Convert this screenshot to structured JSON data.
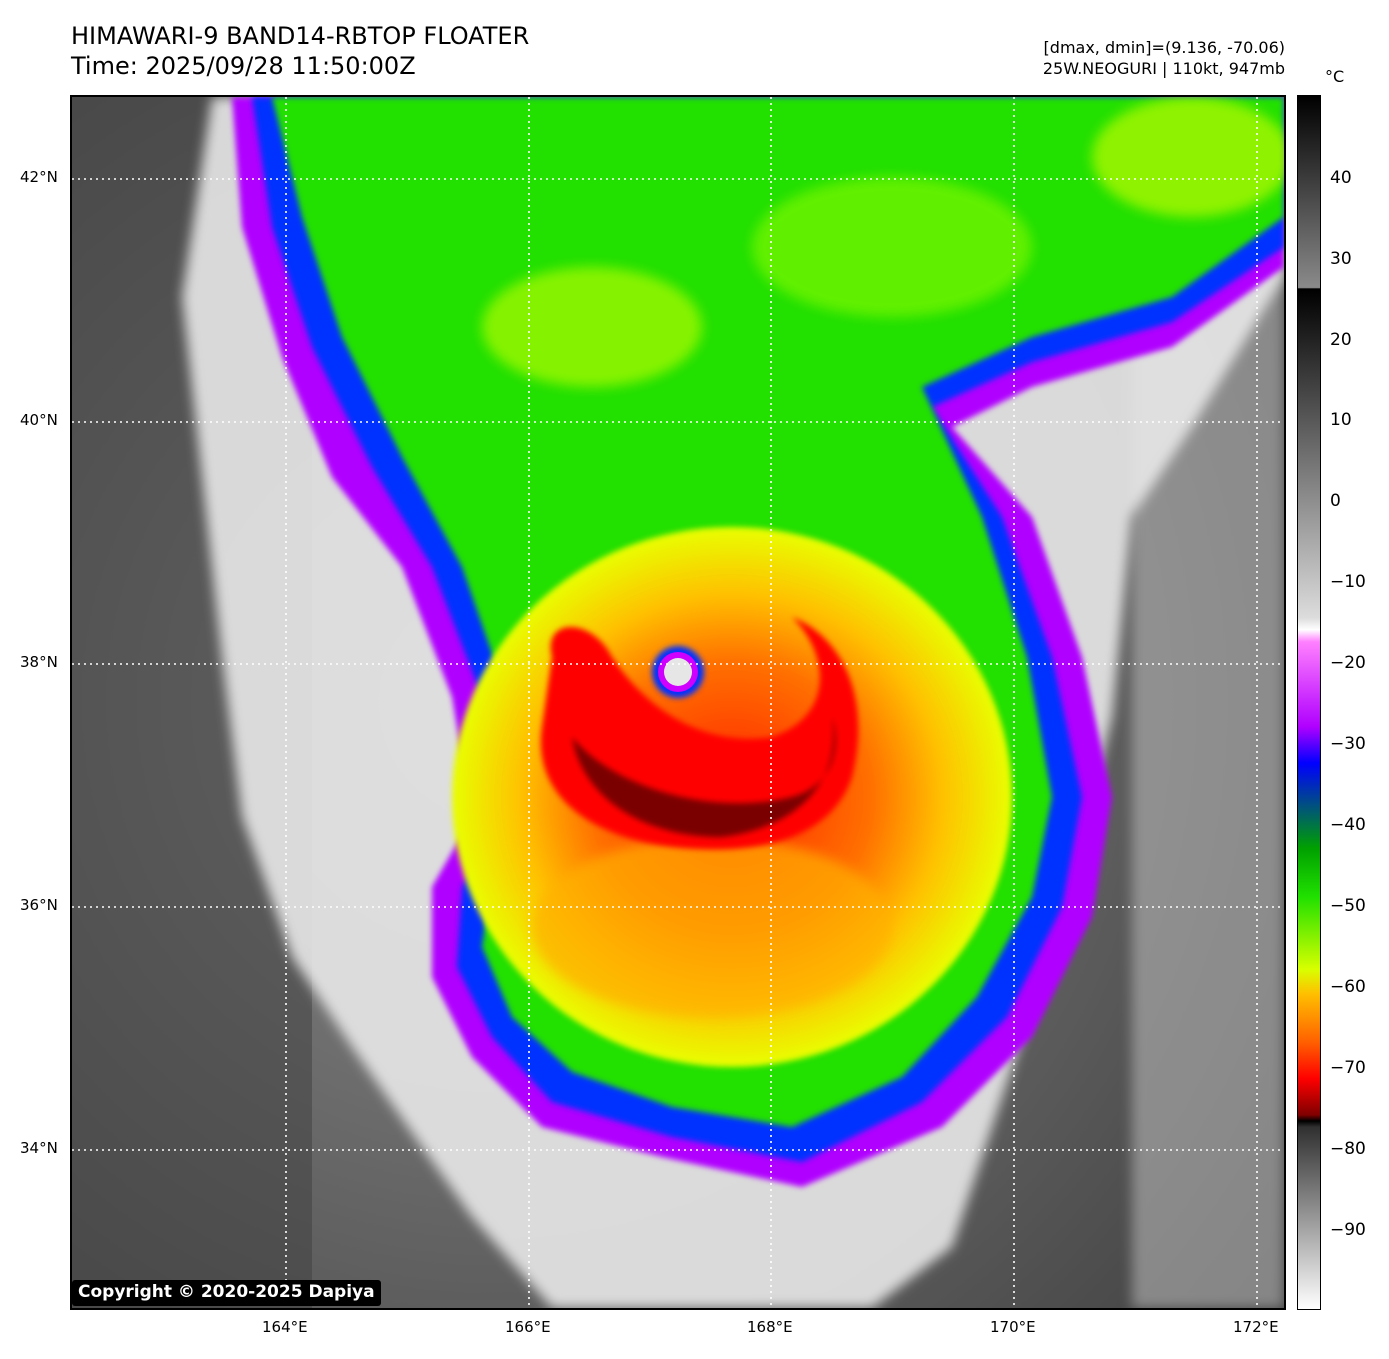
{
  "header": {
    "title_line1": "HIMAWARI-9 BAND14-RBTOP FLOATER",
    "title_line2": "Time: 2025/09/28 11:50:00Z",
    "stats_line1": "[dmax, dmin]=(9.136, -70.06)",
    "stats_line2": "25W.NEOGURI | 110kt, 947mb"
  },
  "map": {
    "lat_labels": [
      "42°N",
      "40°N",
      "38°N",
      "36°N",
      "34°N"
    ],
    "lon_labels": [
      "164°E",
      "166°E",
      "168°E",
      "170°E",
      "172°E"
    ],
    "storm_name": "NEOGURI",
    "eye_position": {
      "lat": "38°N",
      "lon": "167°E"
    }
  },
  "colorbar": {
    "unit": "°C",
    "ticks": [
      "40",
      "30",
      "20",
      "10",
      "0",
      "−10",
      "−20",
      "−30",
      "−40",
      "−50",
      "−60",
      "−70",
      "−80",
      "−90"
    ],
    "colors": {
      "warm_gray": "#6e6e6e",
      "purple": "#b000ff",
      "blue": "#0020ff",
      "green": "#20e000",
      "yellow": "#f0ff00",
      "orange": "#ff9000",
      "red": "#ff1000",
      "dark_red": "#700000"
    }
  },
  "footer": {
    "copyright": "Copyright © 2020-2025 Dapiya"
  }
}
